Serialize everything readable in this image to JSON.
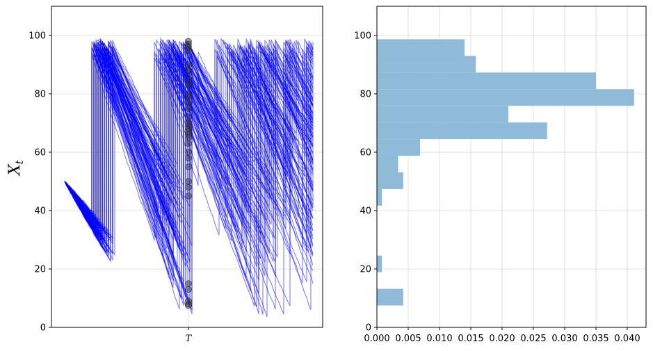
{
  "figure": {
    "background": "#ffffff"
  },
  "chart_data": [
    {
      "type": "line",
      "title": "",
      "xlabel": "",
      "ylabel_main": "X",
      "ylabel_sub": "t",
      "ylim": [
        0,
        110
      ],
      "yticks": [
        0,
        20,
        40,
        60,
        80,
        100
      ],
      "xtick_label": "T",
      "grid": true,
      "line_color": "#0000ff",
      "line_alpha": 0.5,
      "marker_color": "#333333",
      "series_description_count": 100,
      "sample_points_at_T": [
        98,
        97,
        96,
        95,
        90,
        88,
        85,
        83,
        80,
        79,
        77,
        75,
        72,
        70,
        69,
        68,
        67,
        66,
        65,
        63,
        60,
        58,
        55,
        50,
        48,
        45,
        15,
        13,
        9,
        8,
        7.5
      ]
    },
    {
      "type": "bar",
      "orientation": "horizontal",
      "title": "",
      "xlabel": "",
      "ylabel": "",
      "xlim": [
        0,
        0.043
      ],
      "ylim": [
        0,
        110
      ],
      "xticks": [
        "0.000",
        "0.005",
        "0.010",
        "0.015",
        "0.020",
        "0.025",
        "0.030",
        "0.035",
        "0.040"
      ],
      "yticks": [
        0,
        20,
        40,
        60,
        80,
        100
      ],
      "grid": true,
      "bar_color": "#8fbbd9",
      "bins": [
        {
          "y0": 7.5,
          "y1": 13.2,
          "value": 0.0042
        },
        {
          "y0": 13.2,
          "y1": 18.9,
          "value": 0.0
        },
        {
          "y0": 18.9,
          "y1": 24.6,
          "value": 0.0008
        },
        {
          "y0": 24.6,
          "y1": 30.3,
          "value": 0.0
        },
        {
          "y0": 30.3,
          "y1": 36.0,
          "value": 0.0
        },
        {
          "y0": 36.0,
          "y1": 41.7,
          "value": 0.0
        },
        {
          "y0": 41.7,
          "y1": 47.4,
          "value": 0.0008
        },
        {
          "y0": 47.4,
          "y1": 53.1,
          "value": 0.0042
        },
        {
          "y0": 53.1,
          "y1": 58.8,
          "value": 0.0034
        },
        {
          "y0": 58.8,
          "y1": 64.5,
          "value": 0.0069
        },
        {
          "y0": 64.5,
          "y1": 70.2,
          "value": 0.0272
        },
        {
          "y0": 70.2,
          "y1": 75.9,
          "value": 0.021
        },
        {
          "y0": 75.9,
          "y1": 81.6,
          "value": 0.0411
        },
        {
          "y0": 81.6,
          "y1": 87.3,
          "value": 0.035
        },
        {
          "y0": 87.3,
          "y1": 93.0,
          "value": 0.0158
        },
        {
          "y0": 93.0,
          "y1": 98.7,
          "value": 0.014
        }
      ]
    }
  ]
}
